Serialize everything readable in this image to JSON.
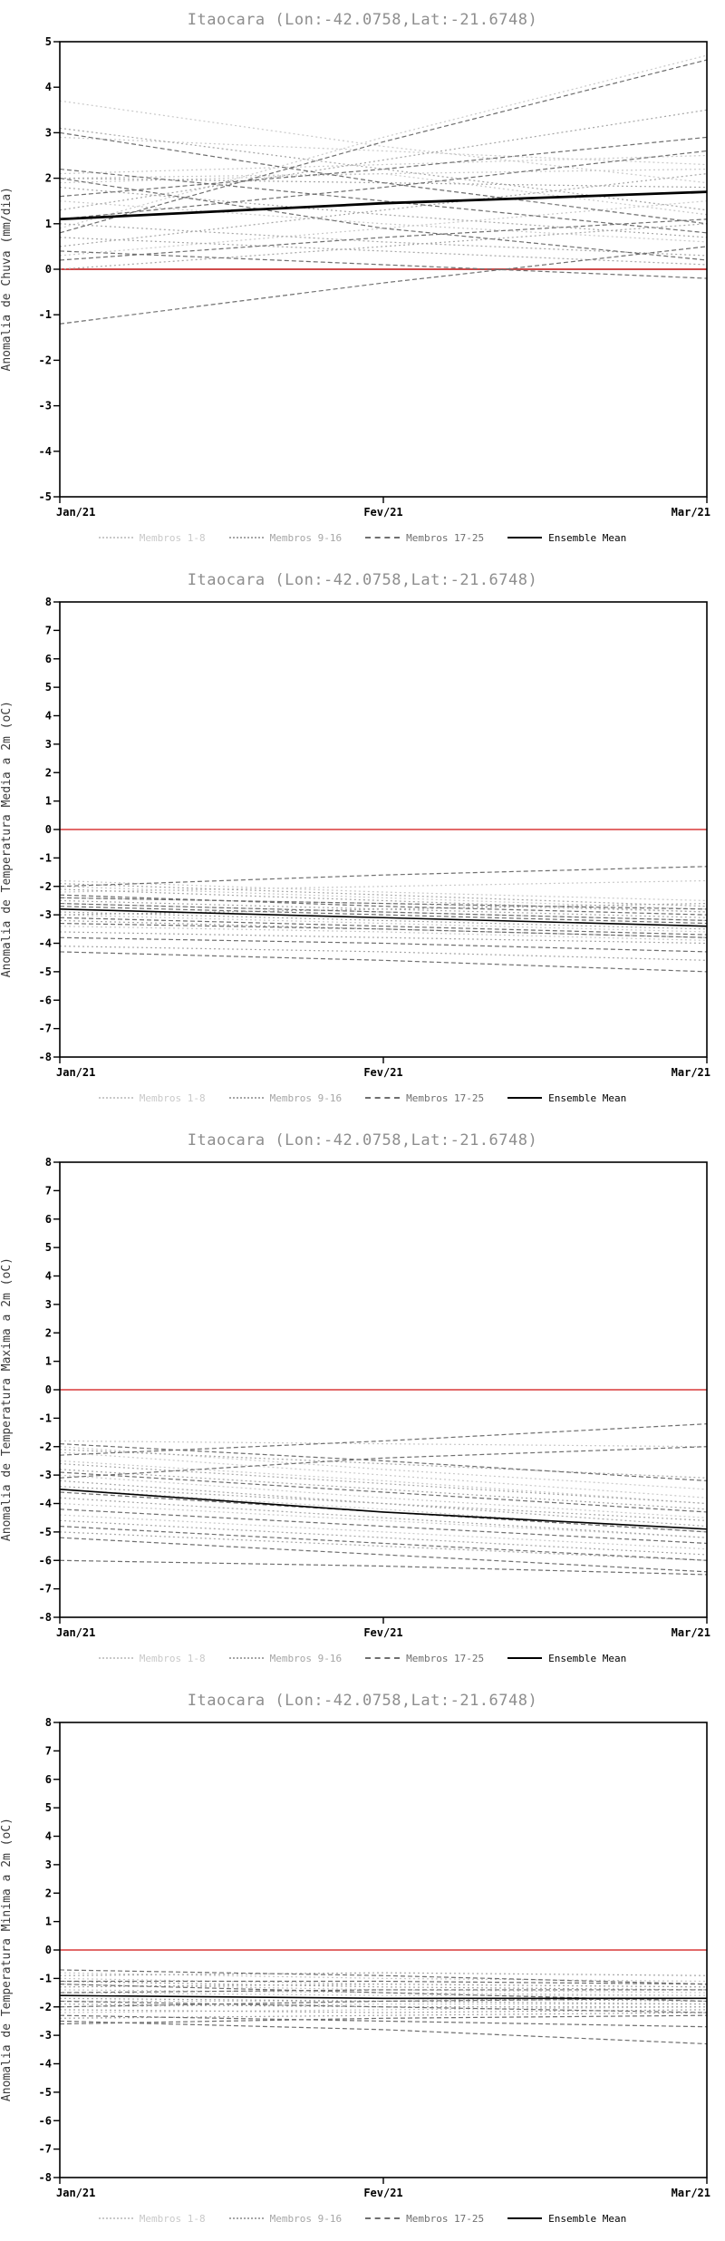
{
  "chart_data": [
    {
      "type": "line",
      "title": "Itaocara (Lon:-42.0758,Lat:-21.6748)",
      "ylabel": "Anomalia de Chuva (mm/dia)",
      "ylim": [
        -5,
        5
      ],
      "ytick_step": 1,
      "x_labels": [
        "Jan/21",
        "Fev/21",
        "Mar/21"
      ],
      "grid": false,
      "legend_position": "bottom",
      "zero_line": {
        "value": 0,
        "color": "#cf4a4a"
      },
      "groups": [
        {
          "name": "Membros 1-8",
          "color": "#c9c9c9",
          "dash": "2 3",
          "legend_style": "dotted",
          "members": [
            [
              3.7,
              2.7,
              1.9
            ],
            [
              2.1,
              2.3,
              2.5
            ],
            [
              1.9,
              2.1,
              1.2
            ],
            [
              0.9,
              2.9,
              4.7
            ],
            [
              2.9,
              2.6,
              2.3
            ],
            [
              1.5,
              1.0,
              0.6
            ],
            [
              0.3,
              0.9,
              1.5
            ],
            [
              2.0,
              2.1,
              2.2
            ]
          ]
        },
        {
          "name": "Membros 9-16",
          "color": "#a6a6a6",
          "dash": "2 3",
          "legend_style": "dotted",
          "members": [
            [
              3.1,
              2.2,
              1.3
            ],
            [
              0.5,
              1.3,
              2.1
            ],
            [
              1.0,
              0.6,
              0.3
            ],
            [
              2.0,
              1.9,
              1.8
            ],
            [
              0.0,
              0.5,
              1.0
            ],
            [
              1.3,
              2.4,
              3.5
            ],
            [
              0.7,
              0.4,
              0.1
            ],
            [
              1.8,
              1.2,
              0.7
            ]
          ]
        },
        {
          "name": "Membros 17-25",
          "color": "#6f6f6f",
          "dash": "5 3",
          "legend_style": "dashed",
          "members": [
            [
              -1.2,
              -0.3,
              0.5
            ],
            [
              0.8,
              2.8,
              4.6
            ],
            [
              2.2,
              1.5,
              0.8
            ],
            [
              0.4,
              0.1,
              -0.2
            ],
            [
              1.1,
              1.8,
              2.6
            ],
            [
              2.0,
              0.9,
              0.2
            ],
            [
              0.2,
              0.7,
              1.1
            ],
            [
              1.6,
              2.2,
              2.9
            ],
            [
              3.0,
              1.9,
              1.0
            ]
          ]
        }
      ],
      "mean": {
        "name": "Ensemble Mean",
        "color": "#000000",
        "width": 2.8,
        "legend_style": "solid",
        "values": [
          1.1,
          1.45,
          1.7
        ]
      }
    },
    {
      "type": "line",
      "title": "Itaocara (Lon:-42.0758,Lat:-21.6748)",
      "ylabel": "Anomalia de Temperatura Media a 2m (oC)",
      "ylim": [
        -8,
        8
      ],
      "ytick_step": 1,
      "x_labels": [
        "Jan/21",
        "Fev/21",
        "Mar/21"
      ],
      "grid": false,
      "legend_position": "bottom",
      "zero_line": {
        "value": 0,
        "color": "#e26a6a"
      },
      "groups": [
        {
          "name": "Membros 1-8",
          "color": "#c9c9c9",
          "dash": "2 3",
          "legend_style": "dotted",
          "members": [
            [
              -2.0,
              -2.4,
              -2.8
            ],
            [
              -2.6,
              -2.9,
              -3.2
            ],
            [
              -3.0,
              -3.3,
              -3.6
            ],
            [
              -1.8,
              -2.2,
              -2.5
            ],
            [
              -2.4,
              -2.6,
              -2.9
            ],
            [
              -3.4,
              -3.6,
              -3.9
            ],
            [
              -2.2,
              -2.0,
              -1.8
            ],
            [
              -2.8,
              -3.1,
              -3.4
            ]
          ]
        },
        {
          "name": "Membros 9-16",
          "color": "#a6a6a6",
          "dash": "2 3",
          "legend_style": "dotted",
          "members": [
            [
              -3.2,
              -3.5,
              -3.8
            ],
            [
              -2.1,
              -2.5,
              -2.9
            ],
            [
              -4.1,
              -4.3,
              -4.6
            ],
            [
              -2.9,
              -3.2,
              -3.5
            ],
            [
              -3.6,
              -3.8,
              -4.0
            ],
            [
              -2.5,
              -2.8,
              -3.1
            ],
            [
              -3.0,
              -2.8,
              -2.6
            ],
            [
              -1.9,
              -2.3,
              -2.7
            ]
          ]
        },
        {
          "name": "Membros 17-25",
          "color": "#6f6f6f",
          "dash": "5 3",
          "legend_style": "dashed",
          "members": [
            [
              -4.3,
              -4.6,
              -5.0
            ],
            [
              -2.3,
              -2.7,
              -3.0
            ],
            [
              -3.8,
              -4.0,
              -4.3
            ],
            [
              -2.7,
              -3.0,
              -3.3
            ],
            [
              -2.0,
              -1.6,
              -1.3
            ],
            [
              -3.3,
              -3.5,
              -3.8
            ],
            [
              -2.6,
              -2.9,
              -3.2
            ],
            [
              -3.1,
              -3.4,
              -3.7
            ],
            [
              -2.4,
              -2.6,
              -2.8
            ]
          ]
        }
      ],
      "mean": {
        "name": "Ensemble Mean",
        "color": "#000000",
        "width": 1.6,
        "legend_style": "solid",
        "values": [
          -2.8,
          -3.1,
          -3.4
        ]
      }
    },
    {
      "type": "line",
      "title": "Itaocara (Lon:-42.0758,Lat:-21.6748)",
      "ylabel": "Anomalia de Temperatura Maxima a 2m (oC)",
      "ylim": [
        -8,
        8
      ],
      "ytick_step": 1,
      "x_labels": [
        "Jan/21",
        "Fev/21",
        "Mar/21"
      ],
      "grid": false,
      "legend_position": "bottom",
      "zero_line": {
        "value": 0,
        "color": "#e26a6a"
      },
      "groups": [
        {
          "name": "Membros 1-8",
          "color": "#c9c9c9",
          "dash": "2 3",
          "legend_style": "dotted",
          "members": [
            [
              -2.0,
              -2.8,
              -3.5
            ],
            [
              -3.0,
              -3.8,
              -4.5
            ],
            [
              -2.5,
              -3.2,
              -4.0
            ],
            [
              -4.0,
              -4.6,
              -5.2
            ],
            [
              -1.8,
              -1.9,
              -2.0
            ],
            [
              -3.5,
              -4.2,
              -5.0
            ],
            [
              -2.2,
              -3.0,
              -3.8
            ],
            [
              -4.4,
              -5.0,
              -5.6
            ]
          ]
        },
        {
          "name": "Membros 9-16",
          "color": "#a6a6a6",
          "dash": "2 3",
          "legend_style": "dotted",
          "members": [
            [
              -3.2,
              -4.0,
              -4.8
            ],
            [
              -2.8,
              -3.5,
              -4.2
            ],
            [
              -4.6,
              -5.2,
              -5.8
            ],
            [
              -2.1,
              -2.6,
              -3.1
            ],
            [
              -3.8,
              -4.5,
              -5.2
            ],
            [
              -5.0,
              -5.5,
              -6.0
            ],
            [
              -2.6,
              -3.3,
              -4.0
            ],
            [
              -3.4,
              -4.0,
              -4.6
            ]
          ]
        },
        {
          "name": "Membros 17-25",
          "color": "#6f6f6f",
          "dash": "5 3",
          "legend_style": "dashed",
          "members": [
            [
              -6.0,
              -6.2,
              -6.5
            ],
            [
              -2.3,
              -1.8,
              -1.2
            ],
            [
              -4.2,
              -4.8,
              -5.4
            ],
            [
              -3.6,
              -4.3,
              -5.0
            ],
            [
              -2.9,
              -3.6,
              -4.3
            ],
            [
              -5.2,
              -5.8,
              -6.4
            ],
            [
              -1.9,
              -2.5,
              -3.2
            ],
            [
              -4.8,
              -5.4,
              -6.0
            ],
            [
              -3.1,
              -2.4,
              -2.0
            ]
          ]
        }
      ],
      "mean": {
        "name": "Ensemble Mean",
        "color": "#000000",
        "width": 1.6,
        "legend_style": "solid",
        "values": [
          -3.5,
          -4.3,
          -4.9
        ]
      }
    },
    {
      "type": "line",
      "title": "Itaocara (Lon:-42.0758,Lat:-21.6748)",
      "ylabel": "Anomalia de Temperatura Minima a 2m (oC)",
      "ylim": [
        -8,
        8
      ],
      "ytick_step": 1,
      "x_labels": [
        "Jan/21",
        "Fev/21",
        "Mar/21"
      ],
      "grid": false,
      "legend_position": "bottom",
      "zero_line": {
        "value": 0,
        "color": "#e26a6a"
      },
      "groups": [
        {
          "name": "Membros 1-8",
          "color": "#c9c9c9",
          "dash": "2 3",
          "legend_style": "dotted",
          "members": [
            [
              -1.0,
              -1.2,
              -1.3
            ],
            [
              -1.5,
              -1.6,
              -1.6
            ],
            [
              -2.0,
              -1.9,
              -1.9
            ],
            [
              -1.2,
              -1.4,
              -1.5
            ],
            [
              -1.8,
              -1.8,
              -1.7
            ],
            [
              -0.8,
              -1.0,
              -1.1
            ],
            [
              -2.2,
              -2.1,
              -2.0
            ],
            [
              -1.4,
              -1.5,
              -1.6
            ]
          ]
        },
        {
          "name": "Membros 9-16",
          "color": "#a6a6a6",
          "dash": "2 3",
          "legend_style": "dotted",
          "members": [
            [
              -1.6,
              -1.7,
              -1.8
            ],
            [
              -2.4,
              -2.3,
              -2.2
            ],
            [
              -1.1,
              -1.3,
              -1.4
            ],
            [
              -1.9,
              -2.0,
              -2.0
            ],
            [
              -0.9,
              -0.8,
              -0.9
            ],
            [
              -2.1,
              -2.2,
              -2.1
            ],
            [
              -1.3,
              -1.2,
              -1.3
            ],
            [
              -1.7,
              -1.8,
              -1.9
            ]
          ]
        },
        {
          "name": "Membros 17-25",
          "color": "#6f6f6f",
          "dash": "5 3",
          "legend_style": "dashed",
          "members": [
            [
              -2.6,
              -2.4,
              -2.3
            ],
            [
              -1.2,
              -1.5,
              -1.8
            ],
            [
              -2.3,
              -2.5,
              -2.7
            ],
            [
              -0.7,
              -0.9,
              -1.2
            ],
            [
              -1.8,
              -2.0,
              -2.2
            ],
            [
              -2.5,
              -2.8,
              -3.3
            ],
            [
              -1.5,
              -1.4,
              -1.4
            ],
            [
              -2.0,
              -1.8,
              -1.7
            ],
            [
              -1.1,
              -1.1,
              -1.2
            ]
          ]
        }
      ],
      "mean": {
        "name": "Ensemble Mean",
        "color": "#000000",
        "width": 1.6,
        "legend_style": "solid",
        "values": [
          -1.6,
          -1.7,
          -1.7
        ]
      }
    }
  ]
}
